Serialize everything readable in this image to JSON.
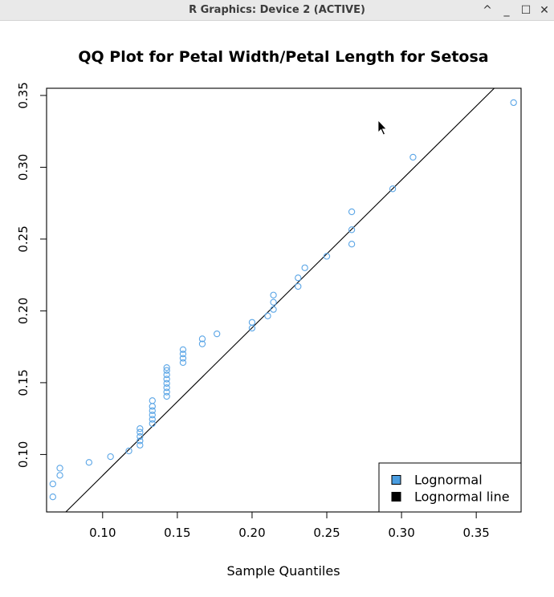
{
  "window": {
    "title": "R Graphics: Device 2 (ACTIVE)",
    "buttons": [
      {
        "name": "collapse",
        "glyph": "^"
      },
      {
        "name": "minimize",
        "glyph": "_"
      },
      {
        "name": "maximize",
        "glyph": "☐"
      },
      {
        "name": "close",
        "glyph": "✕"
      }
    ]
  },
  "chart_data": {
    "type": "scatter",
    "title": "QQ Plot for Petal Width/Petal Length for Setosa",
    "xlabel": "Sample Quantiles",
    "ylabel": "",
    "xlim": [
      0.0625,
      0.38
    ],
    "ylim": [
      0.06,
      0.355
    ],
    "xticks": [
      0.1,
      0.15,
      0.2,
      0.25,
      0.3,
      0.35
    ],
    "yticks": [
      0.1,
      0.15,
      0.2,
      0.25,
      0.3,
      0.35
    ],
    "xtick_labels": [
      "0.10",
      "0.15",
      "0.20",
      "0.25",
      "0.30",
      "0.35"
    ],
    "ytick_labels": [
      "0.10",
      "0.15",
      "0.20",
      "0.25",
      "0.30",
      "0.35"
    ],
    "grid": false,
    "legend_position": "bottom-right",
    "series": [
      {
        "name": "Lognormal",
        "color": "#5aa5e6",
        "marker": "open-circle",
        "points": [
          [
            0.0667,
            0.0705
          ],
          [
            0.0667,
            0.0795
          ],
          [
            0.0714,
            0.0855
          ],
          [
            0.0714,
            0.0905
          ],
          [
            0.0909,
            0.0945
          ],
          [
            0.1053,
            0.0985
          ],
          [
            0.1176,
            0.1025
          ],
          [
            0.125,
            0.1065
          ],
          [
            0.125,
            0.1095
          ],
          [
            0.125,
            0.1125
          ],
          [
            0.125,
            0.1155
          ],
          [
            0.125,
            0.118
          ],
          [
            0.1333,
            0.1215
          ],
          [
            0.1333,
            0.1245
          ],
          [
            0.1333,
            0.1275
          ],
          [
            0.1333,
            0.1305
          ],
          [
            0.1333,
            0.1335
          ],
          [
            0.1333,
            0.1375
          ],
          [
            0.1429,
            0.1405
          ],
          [
            0.1429,
            0.1435
          ],
          [
            0.1429,
            0.1465
          ],
          [
            0.1429,
            0.1495
          ],
          [
            0.1429,
            0.1525
          ],
          [
            0.1429,
            0.1555
          ],
          [
            0.1429,
            0.1585
          ],
          [
            0.1429,
            0.1605
          ],
          [
            0.1538,
            0.164
          ],
          [
            0.1538,
            0.167
          ],
          [
            0.1538,
            0.17
          ],
          [
            0.1538,
            0.173
          ],
          [
            0.1667,
            0.177
          ],
          [
            0.1667,
            0.1805
          ],
          [
            0.1765,
            0.184
          ],
          [
            0.2,
            0.188
          ],
          [
            0.2,
            0.192
          ],
          [
            0.2105,
            0.1965
          ],
          [
            0.2143,
            0.201
          ],
          [
            0.2143,
            0.206
          ],
          [
            0.2143,
            0.211
          ],
          [
            0.2308,
            0.217
          ],
          [
            0.2308,
            0.223
          ],
          [
            0.2353,
            0.23
          ],
          [
            0.25,
            0.238
          ],
          [
            0.2667,
            0.2465
          ],
          [
            0.2667,
            0.2565
          ],
          [
            0.2667,
            0.269
          ],
          [
            0.2941,
            0.285
          ],
          [
            0.3077,
            0.307
          ],
          [
            0.375,
            0.345
          ]
        ]
      },
      {
        "name": "Lognormal line",
        "color": "#000000",
        "line_points": [
          [
            0.075,
            0.0596
          ],
          [
            0.363,
            0.356
          ]
        ]
      }
    ]
  }
}
